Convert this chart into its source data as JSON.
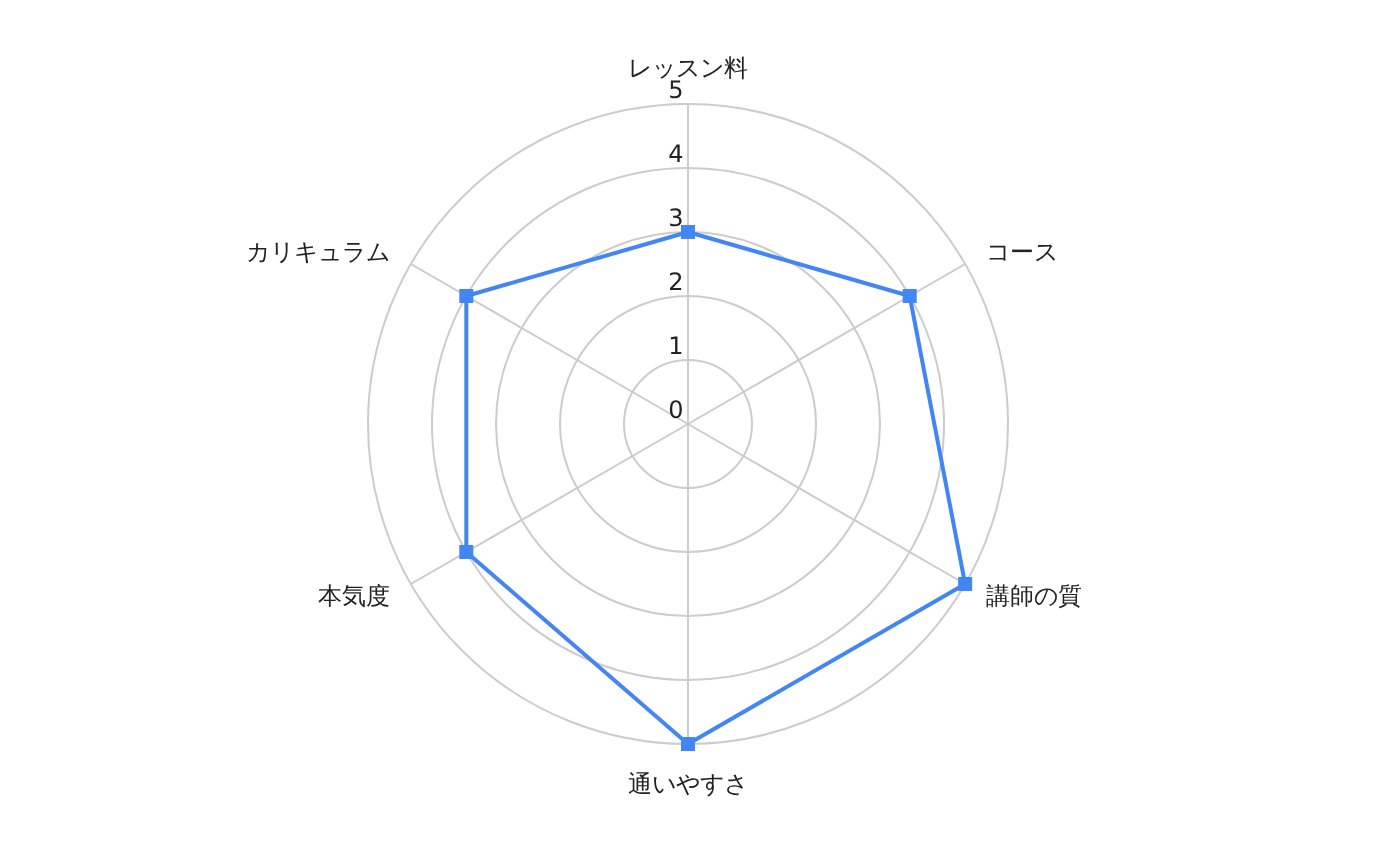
{
  "chart_data": {
    "type": "radar",
    "categories": [
      "レッスン料",
      "コース",
      "講師の質",
      "通いやすさ",
      "本気度",
      "カリキュラム"
    ],
    "series": [
      {
        "color": "#4285f4",
        "values": [
          3,
          4,
          5,
          5,
          4,
          4
        ]
      }
    ],
    "ylim": [
      0,
      5
    ],
    "yticks": [
      0,
      1,
      2,
      3,
      4,
      5
    ],
    "grid": true,
    "marker": "square"
  }
}
